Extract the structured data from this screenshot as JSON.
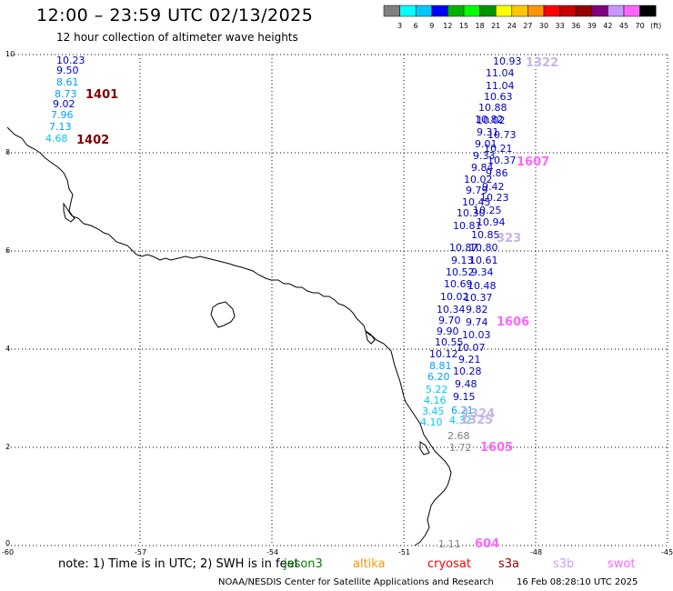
{
  "header": {
    "title": "12:00 – 23:59 UTC 02/13/2025",
    "subtitle": "12 hour collection of altimeter wave heights"
  },
  "legend": {
    "colors": [
      "#808080",
      "#00ffff",
      "#00c8ff",
      "#0000ff",
      "#00b400",
      "#00ff00",
      "#009600",
      "#ffff00",
      "#ffc800",
      "#ff9600",
      "#ff0000",
      "#c80000",
      "#960000",
      "#800080",
      "#c896ff",
      "#ff64ff",
      "#000000"
    ],
    "labels": [
      "3",
      "6",
      "9",
      "12",
      "15",
      "18",
      "21",
      "24",
      "27",
      "30",
      "33",
      "36",
      "39",
      "42",
      "45",
      "70",
      "(ft)"
    ]
  },
  "axes": {
    "x_ticks": [
      "-60",
      "-57",
      "-54",
      "-51",
      "-48",
      "-45"
    ],
    "y_ticks": [
      "0",
      "2",
      "4",
      "6",
      "8",
      "10"
    ]
  },
  "track_labels": [
    "1401",
    "1402",
    "1322",
    "1607",
    "323",
    "1606",
    "1605",
    "604",
    "1324",
    "1325"
  ],
  "wave_heights": [
    "10.23",
    "9.50",
    "8.61",
    "8.73",
    "9.02",
    "7.96",
    "7.13",
    "4.68",
    "10.93",
    "11.04",
    "11.04",
    "10.63",
    "10.88",
    "10.02",
    "10.82",
    "10.73",
    "9.31",
    "9.01",
    "10.21",
    "9.33",
    "10.37",
    "9.84",
    "9.86",
    "10.02",
    "9.42",
    "9.79",
    "10.23",
    "10.45",
    "10.25",
    "10.30",
    "10.94",
    "10.81",
    "10.85",
    "10.87",
    "10.80",
    "9.13",
    "10.61",
    "10.52",
    "9.34",
    "10.69",
    "10.48",
    "10.02",
    "10.37",
    "10.34",
    "9.82",
    "9.70",
    "9.74",
    "9.90",
    "10.03",
    "10.55",
    "10.07",
    "10.12",
    "9.21",
    "8.81",
    "10.28",
    "6.20",
    "9.48",
    "5.22",
    "9.15",
    "4.16",
    "6.21",
    "3.45",
    "4.10",
    "4.32",
    "2.68",
    "1.72",
    "1.11"
  ],
  "footer": {
    "note": "note:  1) Time is in UTC;  2) SWH is in feet",
    "satellites": [
      "jason3",
      "altika",
      "cryosat",
      "s3a",
      "s3b",
      "swot"
    ],
    "sat_colors": [
      "#008000",
      "#ff9600",
      "#ff0000",
      "#960000",
      "#c8a0ff",
      "#ff64ff"
    ],
    "credit": "NOAA/NESDIS Center for Satellite Applications and Research",
    "timestamp": "16 Feb 08:28:10 UTC 2025"
  }
}
